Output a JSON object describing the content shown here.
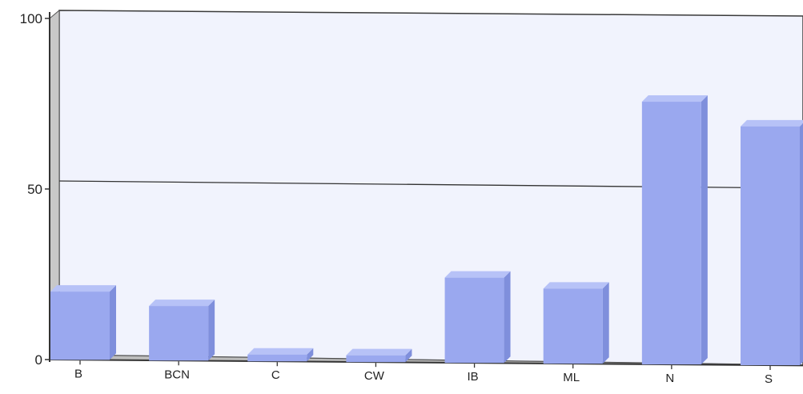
{
  "chart_data": {
    "type": "bar",
    "categories": [
      "B",
      "BCN",
      "C",
      "CW",
      "IB",
      "ML",
      "N",
      "S"
    ],
    "values": [
      20,
      16,
      2,
      2,
      25,
      22,
      77,
      70
    ],
    "ylim": [
      0,
      100
    ],
    "yticks": [
      0,
      50,
      100
    ],
    "ytick_labels": [
      "0",
      "50",
      "100"
    ],
    "grid": true,
    "colors": {
      "bar_front": "#9aa8ef",
      "bar_top": "#b7c2f7",
      "bar_side": "#7f8fdc",
      "plot_background": "#f1f3fd",
      "side_wall": "#c8c8c8",
      "floor": "#bdbdbd",
      "gridline": "#333333"
    }
  }
}
